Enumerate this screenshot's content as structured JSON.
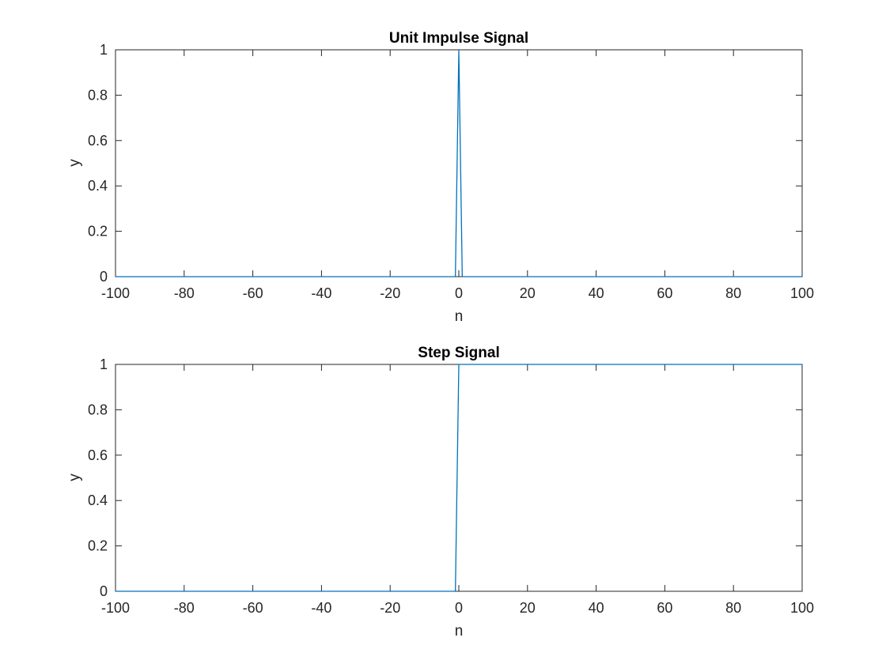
{
  "colors": {
    "series": "#0072BD",
    "axis": "#262626",
    "title": "#000000",
    "background": "#ffffff"
  },
  "chart_data": [
    {
      "type": "line",
      "title": "Unit Impulse Signal",
      "xlabel": "n",
      "ylabel": "y",
      "xlim": [
        -100,
        100
      ],
      "ylim": [
        0,
        1
      ],
      "xticks": [
        -100,
        -80,
        -60,
        -40,
        -20,
        0,
        20,
        40,
        60,
        80,
        100
      ],
      "yticks": [
        0,
        0.2,
        0.4,
        0.6,
        0.8,
        1
      ],
      "grid": false,
      "legend": false,
      "x": [
        -100,
        -1,
        0,
        1,
        100
      ],
      "y": [
        0,
        0,
        1,
        0,
        0
      ]
    },
    {
      "type": "line",
      "title": "Step Signal",
      "xlabel": "n",
      "ylabel": "y",
      "xlim": [
        -100,
        100
      ],
      "ylim": [
        0,
        1
      ],
      "xticks": [
        -100,
        -80,
        -60,
        -40,
        -20,
        0,
        20,
        40,
        60,
        80,
        100
      ],
      "yticks": [
        0,
        0.2,
        0.4,
        0.6,
        0.8,
        1
      ],
      "grid": false,
      "legend": false,
      "x": [
        -100,
        -1,
        0,
        100
      ],
      "y": [
        0,
        0,
        1,
        1
      ]
    }
  ]
}
